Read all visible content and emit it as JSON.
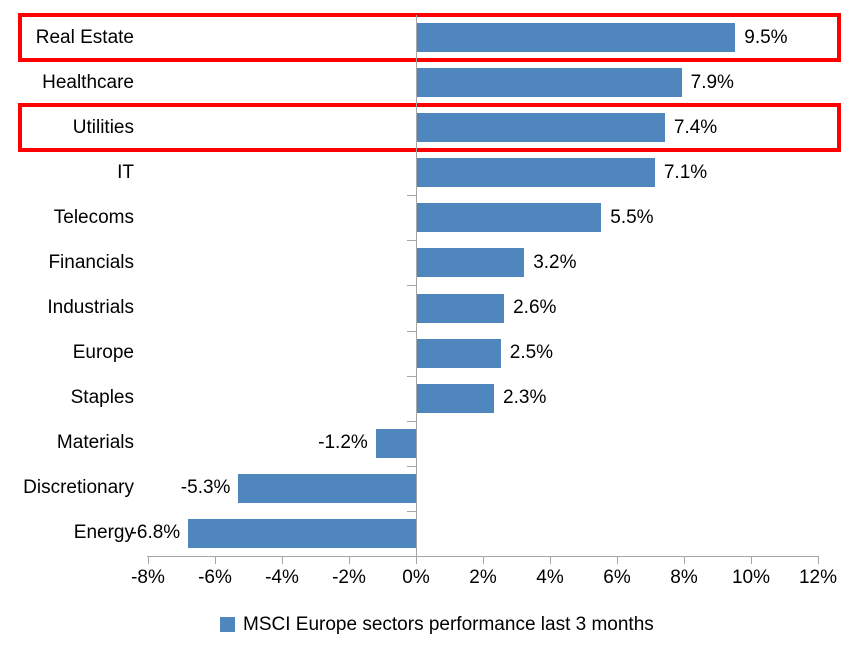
{
  "chart_data": {
    "type": "bar",
    "orientation": "horizontal",
    "categories": [
      "Real Estate",
      "Healthcare",
      "Utilities",
      "IT",
      "Telecoms",
      "Financials",
      "Industrials",
      "Europe",
      "Staples",
      "Materials",
      "Discretionary",
      "Energy"
    ],
    "series": [
      {
        "name": "MSCI Europe sectors performance last 3 months",
        "values": [
          9.5,
          7.9,
          7.4,
          7.1,
          5.5,
          3.2,
          2.6,
          2.5,
          2.3,
          -1.2,
          -5.3,
          -6.8
        ],
        "labels": [
          "9.5%",
          "7.9%",
          "7.4%",
          "7.1%",
          "5.5%",
          "3.2%",
          "2.6%",
          "2.5%",
          "2.3%",
          "-1.2%",
          "-5.3%",
          "-6.8%"
        ]
      }
    ],
    "xlim": [
      -8,
      12
    ],
    "x_tick_labels": [
      "-8%",
      "-6%",
      "-4%",
      "-2%",
      "0%",
      "2%",
      "4%",
      "6%",
      "8%",
      "10%",
      "12%"
    ],
    "x_tick_values": [
      -8,
      -6,
      -4,
      -2,
      0,
      2,
      4,
      6,
      8,
      10,
      12
    ],
    "grid": false,
    "legend": "MSCI Europe sectors performance last 3 months",
    "legend_position": "bottom",
    "bar_color": "#4e86bd",
    "axis_color": "#a6a6a6",
    "highlight_color": "#fe0000",
    "highlighted_categories": [
      "Real Estate",
      "Utilities"
    ]
  }
}
